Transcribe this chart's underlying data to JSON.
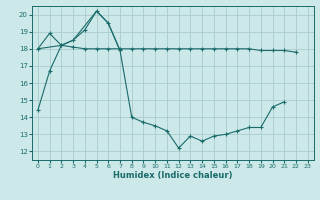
{
  "xlabel": "Humidex (Indice chaleur)",
  "background_color": "#cce8e8",
  "grid_color": "#aacccc",
  "line_color": "#1a6b6b",
  "xlim": [
    -0.5,
    23.5
  ],
  "ylim": [
    11.5,
    20.5
  ],
  "xticks": [
    0,
    1,
    2,
    3,
    4,
    5,
    6,
    7,
    8,
    9,
    10,
    11,
    12,
    13,
    14,
    15,
    16,
    17,
    18,
    19,
    20,
    21,
    22,
    23
  ],
  "yticks": [
    12,
    13,
    14,
    15,
    16,
    17,
    18,
    19,
    20
  ],
  "line1_x": [
    0,
    1,
    2,
    3,
    4,
    5,
    6,
    7,
    8,
    9,
    10,
    11,
    12,
    13,
    14,
    15,
    16,
    17,
    18,
    19,
    20,
    21
  ],
  "line1_y": [
    14.4,
    16.7,
    18.2,
    18.5,
    19.1,
    20.2,
    19.5,
    17.9,
    14.0,
    13.7,
    13.5,
    13.2,
    12.2,
    12.9,
    12.6,
    12.9,
    13.0,
    13.2,
    13.4,
    13.4,
    14.6,
    14.9
  ],
  "line2_x": [
    0,
    1,
    2,
    3,
    4,
    5,
    6,
    7,
    8,
    9,
    10,
    11,
    12,
    13,
    14,
    15,
    16,
    17,
    18,
    19,
    20,
    21,
    22
  ],
  "line2_y": [
    18.0,
    18.9,
    18.2,
    18.1,
    18.0,
    18.0,
    18.0,
    18.0,
    18.0,
    18.0,
    18.0,
    18.0,
    18.0,
    18.0,
    18.0,
    18.0,
    18.0,
    18.0,
    18.0,
    17.9,
    17.9,
    17.9,
    17.8
  ],
  "line3_x": [
    0,
    2,
    3,
    5,
    6,
    7
  ],
  "line3_y": [
    18.0,
    18.2,
    18.5,
    20.2,
    19.5,
    17.9
  ]
}
